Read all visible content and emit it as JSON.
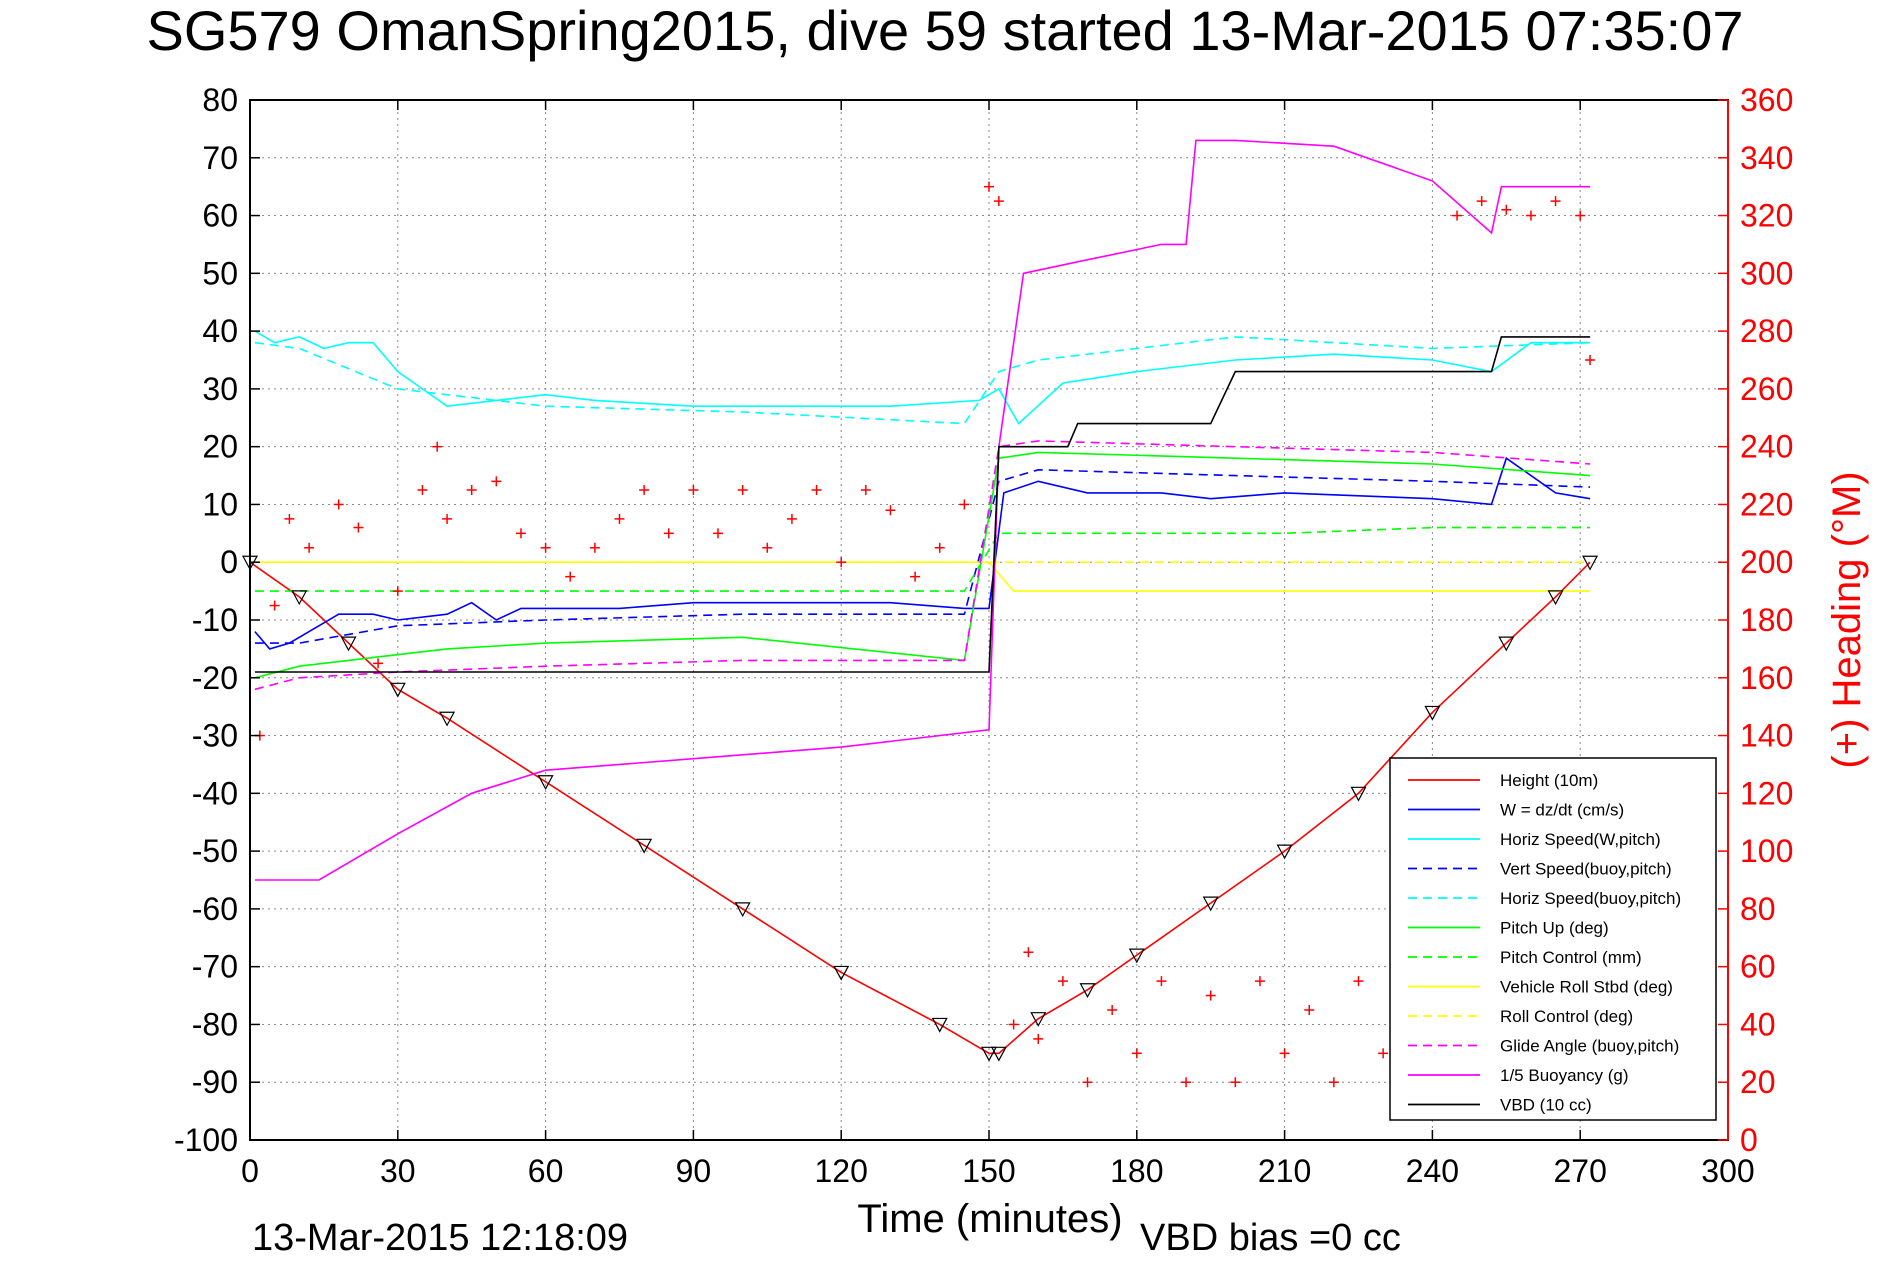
{
  "chart_data": {
    "type": "line",
    "title": "SG579 OmanSpring2015, dive 59 started 13-Mar-2015 07:35:07",
    "xlabel": "Time (minutes)",
    "ylabel_right": "(+) Heading (°M)",
    "xlim": [
      0,
      300
    ],
    "ylim_left": [
      -100,
      80
    ],
    "ylim_right": [
      0,
      360
    ],
    "x_ticks": [
      "0",
      "30",
      "60",
      "90",
      "120",
      "150",
      "180",
      "210",
      "240",
      "270",
      "300"
    ],
    "y_ticks_left": [
      "80",
      "70",
      "60",
      "50",
      "40",
      "30",
      "20",
      "10",
      "0",
      "-10",
      "-20",
      "-30",
      "-40",
      "-50",
      "-60",
      "-70",
      "-80",
      "-90",
      "-100"
    ],
    "y_ticks_right": [
      "360",
      "340",
      "320",
      "300",
      "280",
      "260",
      "240",
      "220",
      "200",
      "180",
      "160",
      "140",
      "120",
      "100",
      "80",
      "60",
      "40",
      "20",
      "0"
    ],
    "grid": true,
    "legend_position": "bottom-right",
    "footer_left": "13-Mar-2015 12:18:09",
    "footer_right": "VBD bias =0 cc",
    "colors": {
      "red": "#ff0000",
      "blue": "#0000ff",
      "cyan": "#00ffff",
      "green": "#00ff00",
      "yellow": "#ffff00",
      "magenta": "#ff00ff",
      "black": "#000000"
    },
    "series": [
      {
        "name": "Height (10m)",
        "color": "#ff0000",
        "style": "solid",
        "x": [
          0,
          10,
          20,
          30,
          40,
          60,
          80,
          100,
          120,
          140,
          150,
          152,
          160,
          170,
          180,
          195,
          210,
          225,
          240,
          255,
          265,
          272
        ],
        "y": [
          0,
          -6,
          -14,
          -22,
          -27,
          -38,
          -49,
          -60,
          -71,
          -80,
          -85,
          -85,
          -79,
          -74,
          -68,
          -59,
          -50,
          -40,
          -26,
          -14,
          -6,
          0
        ]
      },
      {
        "name": "W = dz/dt (cm/s)",
        "color": "#0000ff",
        "style": "solid",
        "x": [
          1,
          4,
          8,
          12,
          18,
          25,
          30,
          40,
          45,
          50,
          55,
          60,
          75,
          90,
          110,
          130,
          145,
          150,
          153,
          160,
          170,
          185,
          195,
          210,
          240,
          252,
          255,
          265,
          272
        ],
        "y": [
          -12,
          -15,
          -14,
          -12,
          -9,
          -9,
          -10,
          -9,
          -7,
          -10,
          -8,
          -8,
          -8,
          -7,
          -7,
          -7,
          -8,
          -8,
          12,
          14,
          12,
          12,
          11,
          12,
          11,
          10,
          18,
          12,
          11
        ]
      },
      {
        "name": "Horiz Speed(W,pitch)",
        "color": "#00ffff",
        "style": "solid",
        "x": [
          1,
          5,
          10,
          15,
          20,
          25,
          30,
          35,
          40,
          50,
          60,
          70,
          90,
          110,
          130,
          148,
          152,
          156,
          165,
          180,
          200,
          220,
          240,
          252,
          260,
          272
        ],
        "y": [
          40,
          38,
          39,
          37,
          38,
          38,
          33,
          30,
          27,
          28,
          29,
          28,
          27,
          27,
          27,
          28,
          30,
          24,
          31,
          33,
          35,
          36,
          35,
          33,
          38,
          38
        ]
      },
      {
        "name": "Vert Speed(buoy,pitch)",
        "color": "#0000ff",
        "style": "dashed",
        "x": [
          1,
          10,
          30,
          60,
          100,
          145,
          152,
          160,
          200,
          240,
          272
        ],
        "y": [
          -14,
          -14,
          -11,
          -10,
          -9,
          -9,
          14,
          16,
          15,
          14,
          13
        ]
      },
      {
        "name": "Horiz Speed(buoy,pitch)",
        "color": "#00ffff",
        "style": "dashed",
        "x": [
          1,
          10,
          30,
          60,
          100,
          145,
          152,
          160,
          200,
          240,
          272
        ],
        "y": [
          38,
          37,
          30,
          27,
          26,
          24,
          33,
          35,
          39,
          37,
          38
        ]
      },
      {
        "name": "Pitch Up (deg)",
        "color": "#00ff00",
        "style": "solid",
        "x": [
          1,
          10,
          20,
          40,
          60,
          100,
          145,
          152,
          160,
          200,
          240,
          272
        ],
        "y": [
          -20,
          -18,
          -17,
          -15,
          -14,
          -13,
          -17,
          18,
          19,
          18,
          17,
          15
        ]
      },
      {
        "name": "Pitch Control (mm)",
        "color": "#00ff00",
        "style": "dashed",
        "x": [
          1,
          20,
          60,
          100,
          145,
          152,
          170,
          210,
          240,
          272
        ],
        "y": [
          -5,
          -5,
          -5,
          -5,
          -5,
          5,
          5,
          5,
          6,
          6
        ]
      },
      {
        "name": "Vehicle Roll Stbd (deg)",
        "color": "#ffff00",
        "style": "solid",
        "x": [
          1,
          5,
          30,
          60,
          90,
          120,
          150,
          155,
          160,
          200,
          240,
          272
        ],
        "y": [
          0,
          0,
          0,
          0,
          0,
          0,
          0,
          -5,
          -5,
          -5,
          -5,
          -5
        ]
      },
      {
        "name": "Roll Control (deg)",
        "color": "#ffff00",
        "style": "dashed",
        "x": [
          1,
          60,
          120,
          150,
          155,
          200,
          272
        ],
        "y": [
          0,
          0,
          0,
          0,
          0,
          0,
          0
        ]
      },
      {
        "name": "Glide Angle (buoy,pitch)",
        "color": "#ff00ff",
        "style": "dashed",
        "x": [
          1,
          10,
          30,
          60,
          100,
          145,
          152,
          160,
          200,
          240,
          272
        ],
        "y": [
          -22,
          -20,
          -19,
          -18,
          -17,
          -17,
          20,
          21,
          20,
          19,
          17
        ]
      },
      {
        "name": "1/5 Buoyancy (g)",
        "color": "#ff00ff",
        "style": "solid",
        "x": [
          1,
          14,
          20,
          30,
          45,
          60,
          90,
          120,
          150,
          152,
          157,
          168,
          185,
          190,
          192,
          200,
          220,
          240,
          252,
          254,
          272
        ],
        "y": [
          -55,
          -55,
          -52,
          -47,
          -40,
          -36,
          -34,
          -32,
          -29,
          20,
          50,
          52,
          55,
          55,
          73,
          73,
          72,
          66,
          57,
          65,
          65
        ]
      },
      {
        "name": "VBD (10 cc)",
        "color": "#000000",
        "style": "solid",
        "x": [
          1,
          25,
          60,
          100,
          150,
          152,
          166,
          168,
          195,
          200,
          252,
          254,
          272
        ],
        "y": [
          -19,
          -19,
          -19,
          -19,
          -19,
          20,
          20,
          24,
          24,
          33,
          33,
          39,
          39
        ]
      }
    ],
    "heading_series": {
      "name": "Heading",
      "color": "#ff0000",
      "marker": "+",
      "axis": "right",
      "x": [
        2,
        5,
        8,
        12,
        18,
        22,
        26,
        30,
        35,
        38,
        40,
        45,
        50,
        55,
        60,
        65,
        70,
        75,
        80,
        85,
        90,
        95,
        100,
        105,
        110,
        115,
        120,
        125,
        130,
        135,
        140,
        145,
        150,
        152,
        155,
        158,
        160,
        165,
        170,
        175,
        180,
        185,
        190,
        195,
        200,
        205,
        210,
        215,
        220,
        225,
        230,
        235,
        240,
        245,
        250,
        255,
        260,
        265,
        270,
        272
      ],
      "y": [
        140,
        185,
        215,
        205,
        220,
        212,
        165,
        190,
        225,
        240,
        215,
        225,
        228,
        210,
        205,
        195,
        205,
        215,
        225,
        210,
        225,
        210,
        225,
        205,
        215,
        225,
        200,
        225,
        218,
        195,
        205,
        220,
        330,
        325,
        40,
        65,
        35,
        55,
        20,
        45,
        30,
        55,
        20,
        50,
        20,
        55,
        30,
        45,
        20,
        55,
        30,
        50,
        25,
        320,
        325,
        322,
        320,
        325,
        320,
        270
      ]
    }
  }
}
